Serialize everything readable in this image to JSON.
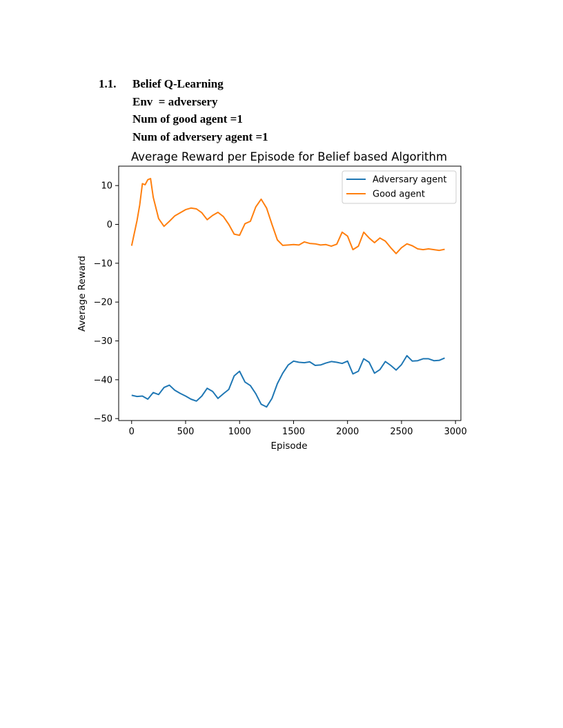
{
  "section": {
    "number": "1.1.",
    "title": "Belief Q-Learning",
    "lines": [
      "Env  = adversery",
      "Num of good agent =1",
      "Num of adversery agent =1"
    ]
  },
  "chart_data": {
    "type": "line",
    "title": "Average Reward per Episode for Belief based Algorithm",
    "xlabel": "Episode",
    "ylabel": "Average Reward",
    "xlim": [
      -120,
      3050
    ],
    "ylim": [
      -50.5,
      15
    ],
    "xticks": [
      0,
      500,
      1000,
      1500,
      2000,
      2500,
      3000
    ],
    "yticks": [
      10,
      0,
      -10,
      -20,
      -30,
      -40,
      -50
    ],
    "grid": false,
    "legend_position": "top-right",
    "series": [
      {
        "name": "Adversary agent",
        "color": "#1f77b4",
        "x": [
          0,
          50,
          100,
          150,
          200,
          250,
          300,
          350,
          400,
          450,
          500,
          550,
          600,
          650,
          700,
          750,
          800,
          850,
          900,
          950,
          1000,
          1050,
          1100,
          1150,
          1200,
          1250,
          1300,
          1350,
          1400,
          1450,
          1500,
          1550,
          1600,
          1650,
          1700,
          1750,
          1800,
          1850,
          1900,
          1950,
          2000,
          2050,
          2100,
          2150,
          2200,
          2250,
          2300,
          2350,
          2400,
          2450,
          2500,
          2550,
          2600,
          2650,
          2700,
          2750,
          2800,
          2850,
          2900
        ],
        "y": [
          -44,
          -44.3,
          -44.2,
          -45,
          -43.3,
          -43.8,
          -42,
          -41.4,
          -42.7,
          -43.5,
          -44.2,
          -45,
          -45.5,
          -44.2,
          -42.2,
          -43,
          -44.8,
          -43.6,
          -42.5,
          -39,
          -37.8,
          -40.6,
          -41.5,
          -43.6,
          -46.3,
          -47,
          -44.8,
          -41,
          -38.3,
          -36.2,
          -35.2,
          -35.5,
          -35.6,
          -35.4,
          -36.3,
          -36.2,
          -35.7,
          -35.3,
          -35.5,
          -35.8,
          -35.2,
          -38.5,
          -37.8,
          -34.6,
          -35.5,
          -38.3,
          -37.4,
          -35.3,
          -36.3,
          -37.5,
          -36.1,
          -33.8,
          -35.2,
          -35.1,
          -34.6,
          -34.6,
          -35.1,
          -35,
          -34.4
        ]
      },
      {
        "name": "Good agent",
        "color": "#ff7f0e",
        "x": [
          0,
          50,
          75,
          100,
          125,
          150,
          175,
          200,
          250,
          300,
          350,
          400,
          450,
          500,
          550,
          600,
          650,
          700,
          750,
          800,
          850,
          900,
          950,
          1000,
          1050,
          1100,
          1150,
          1200,
          1250,
          1300,
          1350,
          1400,
          1450,
          1500,
          1550,
          1600,
          1650,
          1700,
          1750,
          1800,
          1850,
          1900,
          1950,
          2000,
          2050,
          2100,
          2150,
          2200,
          2250,
          2300,
          2350,
          2400,
          2450,
          2500,
          2550,
          2600,
          2650,
          2700,
          2750,
          2800,
          2850,
          2900
        ],
        "y": [
          -5.5,
          1,
          5,
          10.5,
          10.2,
          11.5,
          11.8,
          7,
          1.5,
          -0.5,
          0.8,
          2.2,
          3,
          3.8,
          4.2,
          4,
          3,
          1.2,
          2.3,
          3.1,
          2,
          0,
          -2.5,
          -2.8,
          0.2,
          0.8,
          4.5,
          6.5,
          4.2,
          0,
          -4,
          -5.4,
          -5.3,
          -5.2,
          -5.3,
          -4.5,
          -4.9,
          -5,
          -5.3,
          -5.2,
          -5.6,
          -5.1,
          -2,
          -3,
          -6.5,
          -5.6,
          -2,
          -3.5,
          -4.7,
          -3.5,
          -4.3,
          -6,
          -7.5,
          -6,
          -5,
          -5.5,
          -6.3,
          -6.5,
          -6.3,
          -6.5,
          -6.7,
          -6.4
        ]
      }
    ]
  }
}
